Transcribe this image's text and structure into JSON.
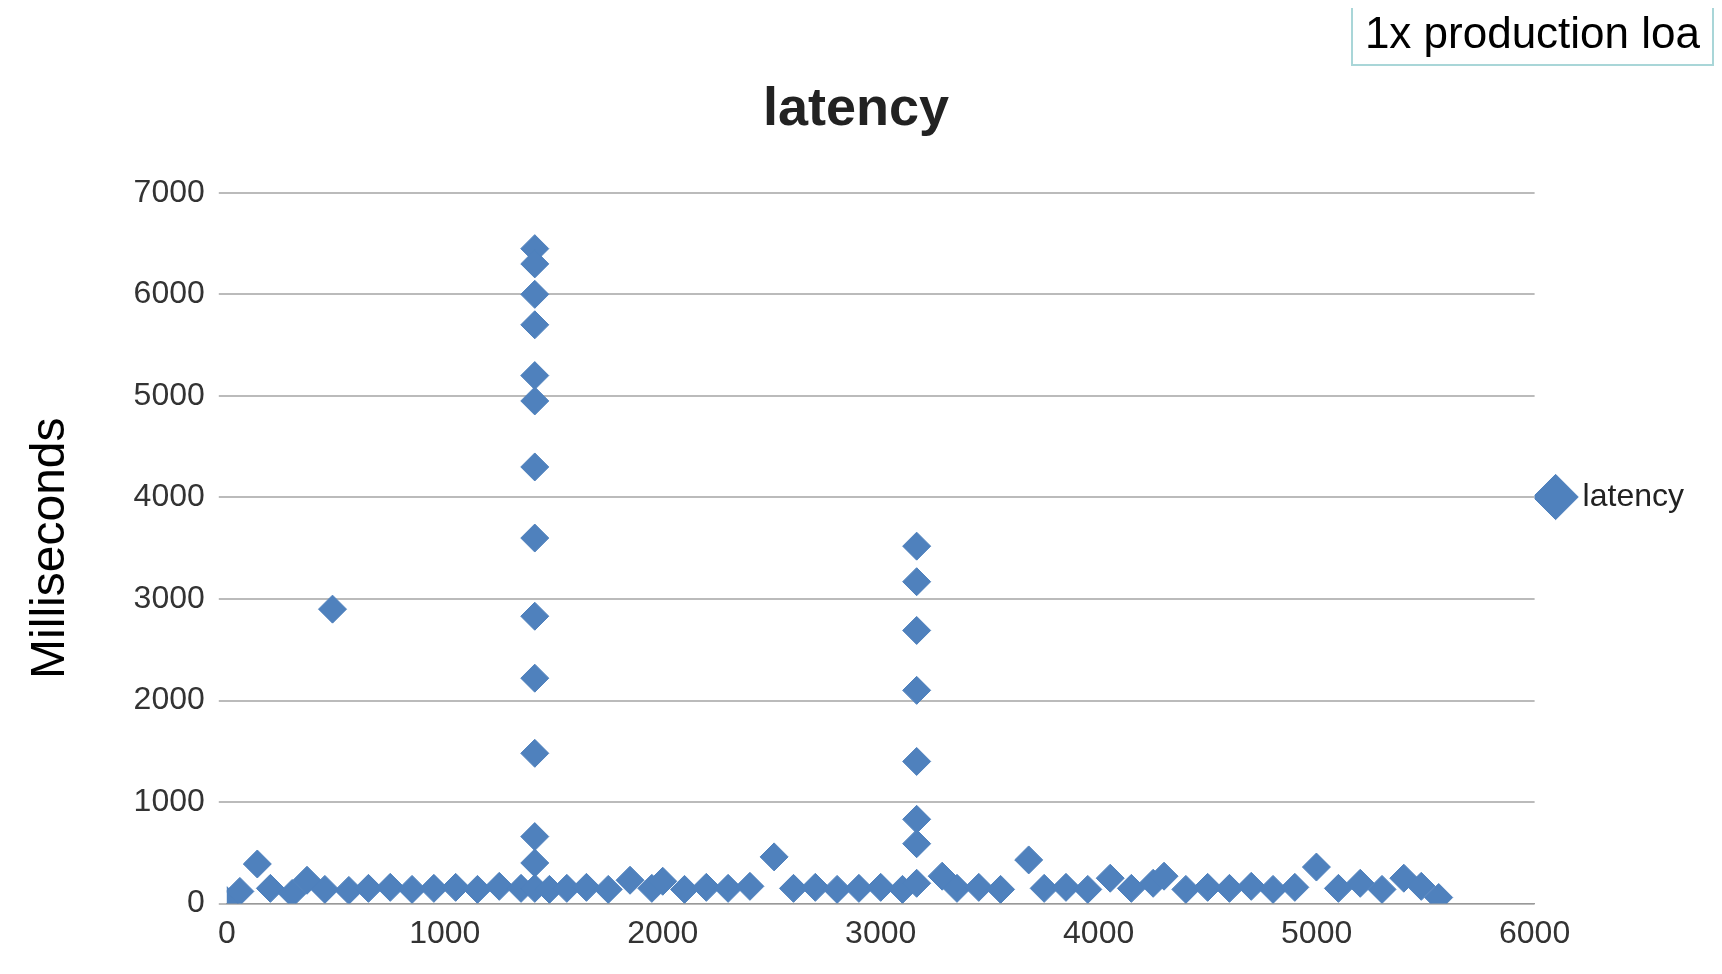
{
  "chart_data": {
    "type": "scatter",
    "title": "latency",
    "ylabel": "Milliseconds",
    "annotations": [
      "1x production loa"
    ],
    "xlim": [
      0,
      6000
    ],
    "xticks": [
      0,
      1000,
      2000,
      3000,
      4000,
      5000,
      6000
    ],
    "ylim": [
      0,
      7000
    ],
    "yticks": [
      0,
      1000,
      2000,
      3000,
      4000,
      5000,
      6000,
      7000
    ],
    "grid": "y",
    "legend": "right",
    "marker": "diamond",
    "series": [
      {
        "name": "latency",
        "color": "#4f81bd",
        "x": [
          0,
          60,
          140,
          200,
          300,
          368,
          450,
          485,
          560,
          650,
          750,
          850,
          950,
          1050,
          1150,
          1250,
          1350,
          1413,
          1413,
          1413,
          1413,
          1413,
          1413,
          1413,
          1413,
          1413,
          1413,
          1413,
          1413,
          1413,
          1413,
          1480,
          1560,
          1650,
          1750,
          1850,
          1950,
          2000,
          2100,
          2200,
          2300,
          2400,
          2511,
          2600,
          2700,
          2800,
          2900,
          3000,
          3100,
          3165,
          3165,
          3165,
          3165,
          3165,
          3165,
          3165,
          3165,
          3282,
          3350,
          3450,
          3550,
          3679,
          3750,
          3850,
          3950,
          4053,
          4150,
          4250,
          4300,
          4400,
          4500,
          4600,
          4700,
          4800,
          4900,
          4999,
          5100,
          5200,
          5300,
          5400,
          5480,
          5560
        ],
        "values": [
          30,
          120,
          390,
          150,
          100,
          230,
          140,
          2900,
          130,
          150,
          160,
          140,
          150,
          160,
          140,
          170,
          150,
          6450,
          6300,
          6000,
          5700,
          5200,
          4950,
          4300,
          3600,
          2830,
          2220,
          1480,
          660,
          400,
          150,
          140,
          150,
          160,
          140,
          230,
          150,
          220,
          140,
          160,
          150,
          170,
          460,
          150,
          160,
          140,
          150,
          160,
          140,
          3520,
          3170,
          2690,
          2100,
          1400,
          830,
          590,
          200,
          270,
          150,
          160,
          140,
          430,
          150,
          160,
          140,
          250,
          150,
          200,
          270,
          140,
          160,
          150,
          170,
          140,
          160,
          360,
          150,
          200,
          140,
          250,
          170,
          60
        ]
      }
    ]
  }
}
